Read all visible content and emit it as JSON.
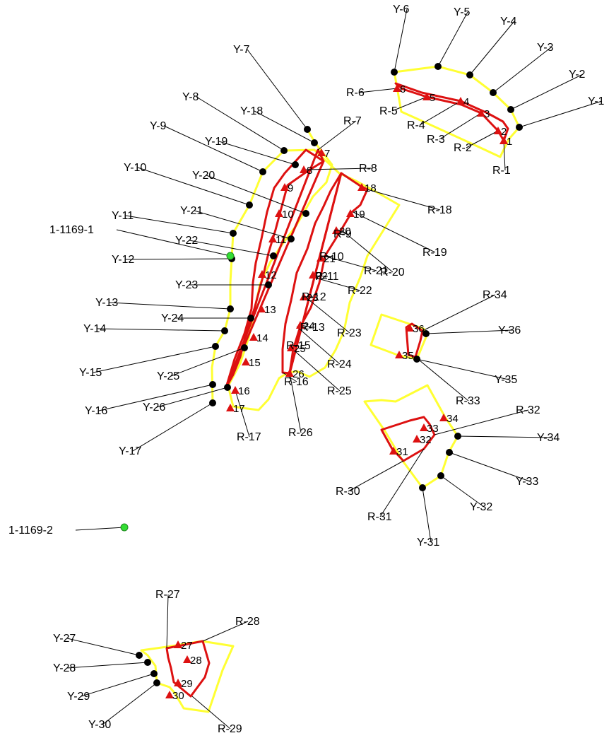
{
  "colors": {
    "background": "#ffffff",
    "outer_boundary": "#ffff33",
    "inner_boundary": "#dd1111",
    "point_black": "#000000",
    "point_red": "#dd1111",
    "point_green": "#33dd33",
    "leader": "#000000"
  },
  "y_labels": [
    "Y-1",
    "Y-2",
    "Y-3",
    "Y-4",
    "Y-5",
    "Y-6",
    "Y-7",
    "Y-8",
    "Y-9",
    "Y-10",
    "Y-11",
    "Y-12",
    "Y-13",
    "Y-14",
    "Y-15",
    "Y-16",
    "Y-17",
    "Y-18",
    "Y-19",
    "Y-20",
    "Y-21",
    "Y-22",
    "Y-23",
    "Y-24",
    "Y-25",
    "Y-26",
    "Y-27",
    "Y-28",
    "Y-29",
    "Y-30",
    "Y-31",
    "Y-32",
    "Y-33",
    "Y-34",
    "Y-35",
    "Y-36"
  ],
  "r_labels": [
    "R-1",
    "R-2",
    "R-3",
    "R-4",
    "R-5",
    "R-6",
    "R-7",
    "R-8",
    "R-9",
    "R-10",
    "R-11",
    "R-12",
    "R-13",
    "R-15",
    "R-16",
    "R-17",
    "R-18",
    "R-19",
    "R-20",
    "R-21",
    "R-22",
    "R-23",
    "R-24",
    "R-25",
    "R-26",
    "R-27",
    "R-28",
    "R-29",
    "R-30",
    "R-31",
    "R-32",
    "R-33",
    "R-34"
  ],
  "triangle_numbers": [
    "1",
    "2",
    "3",
    "4",
    "5",
    "6",
    "7",
    "8",
    "9",
    "10",
    "11",
    "12",
    "13",
    "14",
    "15",
    "16",
    "17",
    "18",
    "19",
    "20",
    "21",
    "22",
    "23",
    "24",
    "25",
    "26",
    "27",
    "28",
    "29",
    "30",
    "31",
    "32",
    "33",
    "34",
    "35",
    "36"
  ],
  "reference_points": [
    "1-1169-1",
    "1-1169-2"
  ]
}
